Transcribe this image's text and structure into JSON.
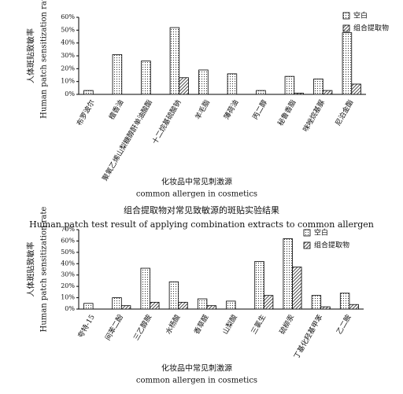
{
  "chart_data": [
    {
      "type": "bar",
      "y_label": "人体斑贴致敏率",
      "y_label_en": "Human patch sensitization rate",
      "x_label": "化妆品中常见刺激源",
      "x_label_en": "common allergen in cosmetics",
      "categories": [
        "布罗波尔",
        "檀香油",
        "聚氧乙烯山梨糖醇酐单油酸酯",
        "十二烷基硫酸钠",
        "羊毛脂",
        "薄荷油",
        "丙二醇",
        "秘鲁香脂",
        "咪唑烷基脲",
        "尼泊金酯"
      ],
      "series": [
        {
          "name": "空白",
          "color": "#ffffff",
          "pattern": "dots",
          "values": [
            3,
            31,
            26,
            52,
            19,
            16,
            3,
            14,
            12,
            48
          ]
        },
        {
          "name": "组合提取物",
          "color": "#ffffff",
          "pattern": "hatch",
          "values": [
            0,
            0,
            0,
            13,
            0,
            0,
            0,
            1,
            3,
            8
          ]
        }
      ],
      "ylim": [
        0,
        60
      ],
      "yticks": [
        {
          "value": 0,
          "label": "0%"
        },
        {
          "value": 10,
          "label": "10%"
        },
        {
          "value": 20,
          "label": "20%"
        },
        {
          "value": 30,
          "label": "30%"
        },
        {
          "value": 40,
          "label": "40%"
        },
        {
          "value": 50,
          "label": "50%"
        },
        {
          "value": 60,
          "label": "60%"
        }
      ],
      "grid": false,
      "legend": "top-right"
    },
    {
      "type": "bar",
      "title": "组合提取物对常见致敏源的斑贴实验结果",
      "subtitle": "Human patch test result of applying combination extracts to common allergen",
      "y_label": "人体斑贴致敏率",
      "y_label_en": "Human patch sensitization rate",
      "x_label": "化妆品中常见刺激源",
      "x_label_en": "common allergen in cosmetics",
      "categories": [
        "夸特-15",
        "间苯二酚",
        "三乙醇胺",
        "水杨酸",
        "香草醛",
        "山梨酸",
        "三氯生",
        "硫柳汞",
        "丁基化羟基甲苯",
        "乙二胺"
      ],
      "series": [
        {
          "name": "空白",
          "color": "#ffffff",
          "pattern": "dots",
          "values": [
            5,
            10,
            36,
            24,
            9,
            7,
            42,
            62,
            12,
            14
          ]
        },
        {
          "name": "组合提取物",
          "color": "#ffffff",
          "pattern": "hatch",
          "values": [
            0,
            3,
            6,
            6,
            3,
            0,
            12,
            37,
            2,
            4
          ]
        }
      ],
      "ylim": [
        0,
        70
      ],
      "yticks": [
        {
          "value": 0,
          "label": "0%"
        },
        {
          "value": 10,
          "label": "10%"
        },
        {
          "value": 20,
          "label": "20%"
        },
        {
          "value": 30,
          "label": "30%"
        },
        {
          "value": 40,
          "label": "40%"
        },
        {
          "value": 50,
          "label": "50%"
        },
        {
          "value": 60,
          "label": "60%"
        },
        {
          "value": 70,
          "label": "70%"
        }
      ],
      "grid": false,
      "legend": "top-right"
    }
  ]
}
